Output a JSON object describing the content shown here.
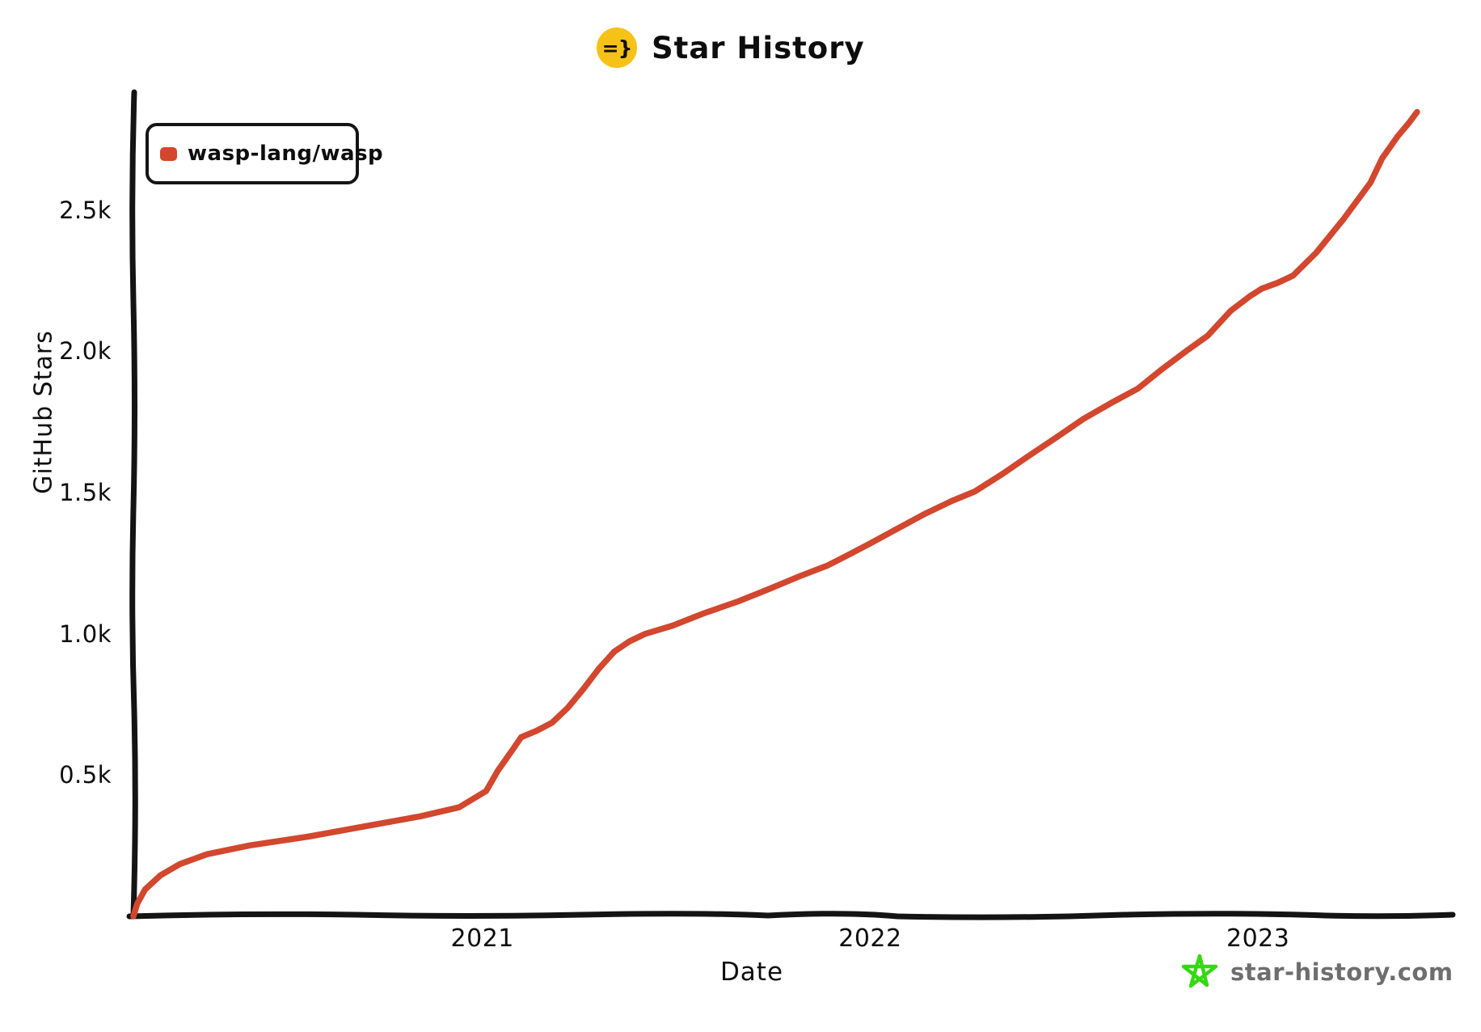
{
  "title": {
    "text": "Star History",
    "icon_text": "=}",
    "icon_bg": "#f6c216"
  },
  "legend": {
    "items": [
      {
        "label": "wasp-lang/wasp",
        "color": "#d2472e"
      }
    ]
  },
  "footer": {
    "site": "star-history.com",
    "star_color": "#35d813",
    "text_color": "#6e6e6e"
  },
  "colors": {
    "line": "#d2472e",
    "axis": "#141414",
    "background": "#ffffff"
  },
  "chart_data": {
    "type": "line",
    "title": "Star History",
    "xlabel": "Date",
    "ylabel": "GitHub Stars",
    "grid": false,
    "legend_position": "top-left",
    "xlim": [
      2020.098,
      2023.502
    ],
    "ylim": [
      0,
      2920
    ],
    "x_ticks": [
      {
        "value": 2021,
        "label": "2021"
      },
      {
        "value": 2022,
        "label": "2022"
      },
      {
        "value": 2023,
        "label": "2023"
      }
    ],
    "y_ticks": [
      {
        "value": 500,
        "label": "0.5k"
      },
      {
        "value": 1000,
        "label": "1.0k"
      },
      {
        "value": 1500,
        "label": "1.5k"
      },
      {
        "value": 2000,
        "label": "2.0k"
      },
      {
        "value": 2500,
        "label": "2.5k"
      }
    ],
    "series": [
      {
        "name": "wasp-lang/wasp",
        "color": "#d2472e",
        "points": [
          [
            2020.1,
            0
          ],
          [
            2020.11,
            45
          ],
          [
            2020.13,
            95
          ],
          [
            2020.17,
            145
          ],
          [
            2020.22,
            185
          ],
          [
            2020.29,
            220
          ],
          [
            2020.4,
            251
          ],
          [
            2020.55,
            282
          ],
          [
            2020.69,
            317
          ],
          [
            2020.84,
            354
          ],
          [
            2020.94,
            386
          ],
          [
            2021.01,
            444
          ],
          [
            2021.04,
            516
          ],
          [
            2021.08,
            594
          ],
          [
            2021.1,
            634
          ],
          [
            2021.14,
            657
          ],
          [
            2021.18,
            686
          ],
          [
            2021.22,
            738
          ],
          [
            2021.26,
            804
          ],
          [
            2021.3,
            876
          ],
          [
            2021.34,
            937
          ],
          [
            2021.38,
            974
          ],
          [
            2021.42,
            1000
          ],
          [
            2021.49,
            1029
          ],
          [
            2021.57,
            1072
          ],
          [
            2021.66,
            1115
          ],
          [
            2021.74,
            1159
          ],
          [
            2021.82,
            1205
          ],
          [
            2021.89,
            1242
          ],
          [
            2021.94,
            1277
          ],
          [
            2022.0,
            1320
          ],
          [
            2022.07,
            1372
          ],
          [
            2022.14,
            1424
          ],
          [
            2022.21,
            1470
          ],
          [
            2022.27,
            1504
          ],
          [
            2022.34,
            1565
          ],
          [
            2022.41,
            1631
          ],
          [
            2022.48,
            1695
          ],
          [
            2022.55,
            1761
          ],
          [
            2022.62,
            1816
          ],
          [
            2022.69,
            1868
          ],
          [
            2022.75,
            1934
          ],
          [
            2022.82,
            2006
          ],
          [
            2022.87,
            2055
          ],
          [
            2022.93,
            2144
          ],
          [
            2022.98,
            2196
          ],
          [
            2023.01,
            2222
          ],
          [
            2023.05,
            2242
          ],
          [
            2023.09,
            2268
          ],
          [
            2023.15,
            2349
          ],
          [
            2023.22,
            2467
          ],
          [
            2023.29,
            2597
          ],
          [
            2023.32,
            2683
          ],
          [
            2023.36,
            2761
          ],
          [
            2023.39,
            2810
          ],
          [
            2023.41,
            2847
          ]
        ]
      }
    ]
  }
}
